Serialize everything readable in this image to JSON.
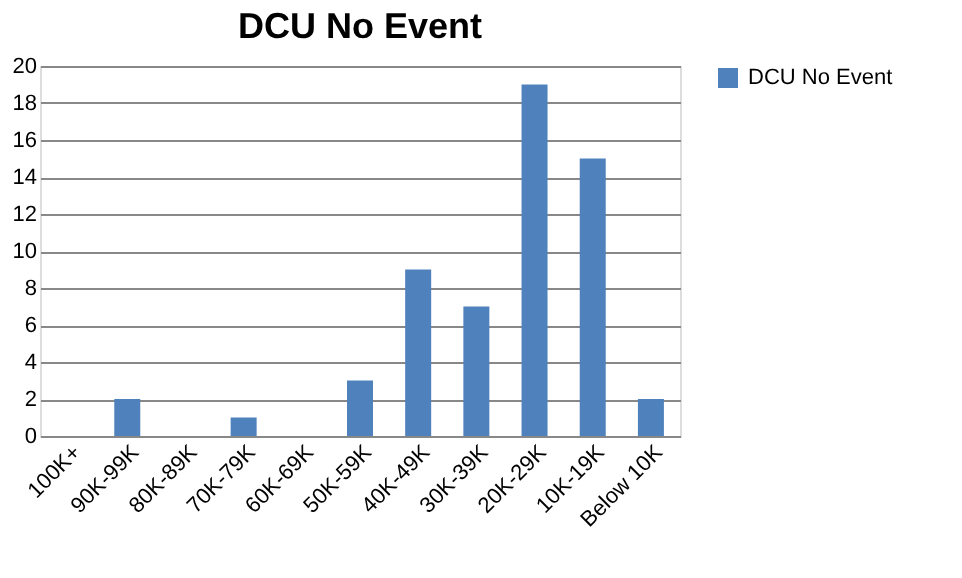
{
  "chart_data": {
    "type": "bar",
    "title": "DCU No Event",
    "categories": [
      "100K+",
      "90K-99K",
      "80K-89K",
      "70K-79K",
      "60K-69K",
      "50K-59K",
      "40K-49K",
      "30K-39K",
      "20K-29K",
      "10K-19K",
      "Below 10K"
    ],
    "series": [
      {
        "name": "DCU No Event",
        "color": "#4f81bd",
        "values": [
          0,
          2,
          0,
          1,
          0,
          3,
          9,
          7,
          19,
          15,
          2
        ]
      }
    ],
    "ylim": [
      0,
      20
    ],
    "yticks": [
      0,
      2,
      4,
      6,
      8,
      10,
      12,
      14,
      16,
      18,
      20
    ],
    "grid": "y",
    "legend": "right"
  }
}
